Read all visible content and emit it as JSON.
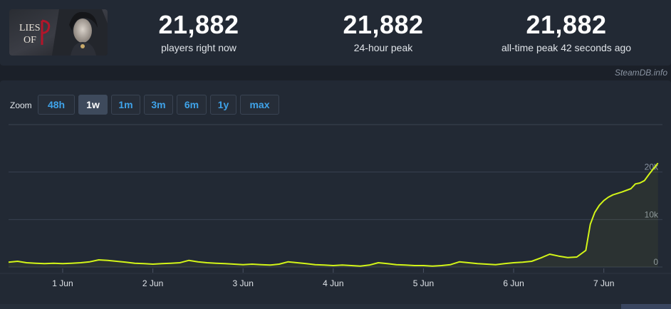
{
  "game": {
    "art_icon": "lies-of-p-artwork",
    "art_text": "Lies of P"
  },
  "stats": [
    {
      "value": "21,882",
      "label": "players right now"
    },
    {
      "value": "21,882",
      "label": "24-hour peak"
    },
    {
      "value": "21,882",
      "label": "all-time peak 42 seconds ago"
    }
  ],
  "credit": "SteamDB.info",
  "zoom": {
    "label": "Zoom",
    "options": [
      "48h",
      "1w",
      "1m",
      "3m",
      "6m",
      "1y",
      "max"
    ],
    "active": "1w"
  },
  "chart_data": {
    "type": "line",
    "title": "",
    "xlabel": "",
    "ylabel": "",
    "x_ticks": [
      "1 Jun",
      "2 Jun",
      "3 Jun",
      "4 Jun",
      "5 Jun",
      "6 Jun",
      "7 Jun"
    ],
    "y_ticks": [
      "0",
      "10k",
      "20k"
    ],
    "y_tick_values": [
      0,
      10000,
      20000
    ],
    "ylim": [
      0,
      30000
    ],
    "xlim": [
      0.4,
      7.65
    ],
    "grid": true,
    "line_color": "#d3f518",
    "series": [
      {
        "x": [
          0.4,
          0.5,
          0.6,
          0.7,
          0.8,
          0.9,
          1.0,
          1.1,
          1.2,
          1.3,
          1.4,
          1.5,
          1.6,
          1.7,
          1.8,
          1.9,
          2.0,
          2.1,
          2.2,
          2.3,
          2.4,
          2.5,
          2.6,
          2.7,
          2.8,
          2.9,
          3.0,
          3.1,
          3.2,
          3.3,
          3.4,
          3.5,
          3.6,
          3.7,
          3.8,
          3.9,
          4.0,
          4.1,
          4.2,
          4.3,
          4.4,
          4.5,
          4.6,
          4.7,
          4.8,
          4.9,
          5.0,
          5.1,
          5.2,
          5.3,
          5.4,
          5.5,
          5.6,
          5.7,
          5.8,
          5.9,
          6.0,
          6.1,
          6.2,
          6.3,
          6.4,
          6.5,
          6.6,
          6.7,
          6.8,
          6.85,
          6.9,
          6.95,
          7.0,
          7.05,
          7.1,
          7.2,
          7.3,
          7.35,
          7.4,
          7.45,
          7.5,
          7.55,
          7.6
        ],
        "y": [
          1000,
          1200,
          900,
          800,
          700,
          800,
          700,
          800,
          900,
          1100,
          1500,
          1400,
          1200,
          1000,
          800,
          700,
          600,
          700,
          800,
          900,
          1400,
          1100,
          900,
          800,
          700,
          600,
          500,
          600,
          500,
          400,
          600,
          1100,
          900,
          700,
          500,
          400,
          300,
          400,
          300,
          200,
          400,
          900,
          700,
          500,
          400,
          300,
          300,
          200,
          300,
          500,
          1100,
          900,
          700,
          600,
          500,
          700,
          900,
          1000,
          1200,
          1900,
          2700,
          2300,
          2000,
          2100,
          3500,
          9000,
          11500,
          13000,
          14000,
          14700,
          15200,
          15800,
          16500,
          17500,
          17700,
          18200,
          19500,
          20700,
          21882
        ]
      }
    ]
  }
}
